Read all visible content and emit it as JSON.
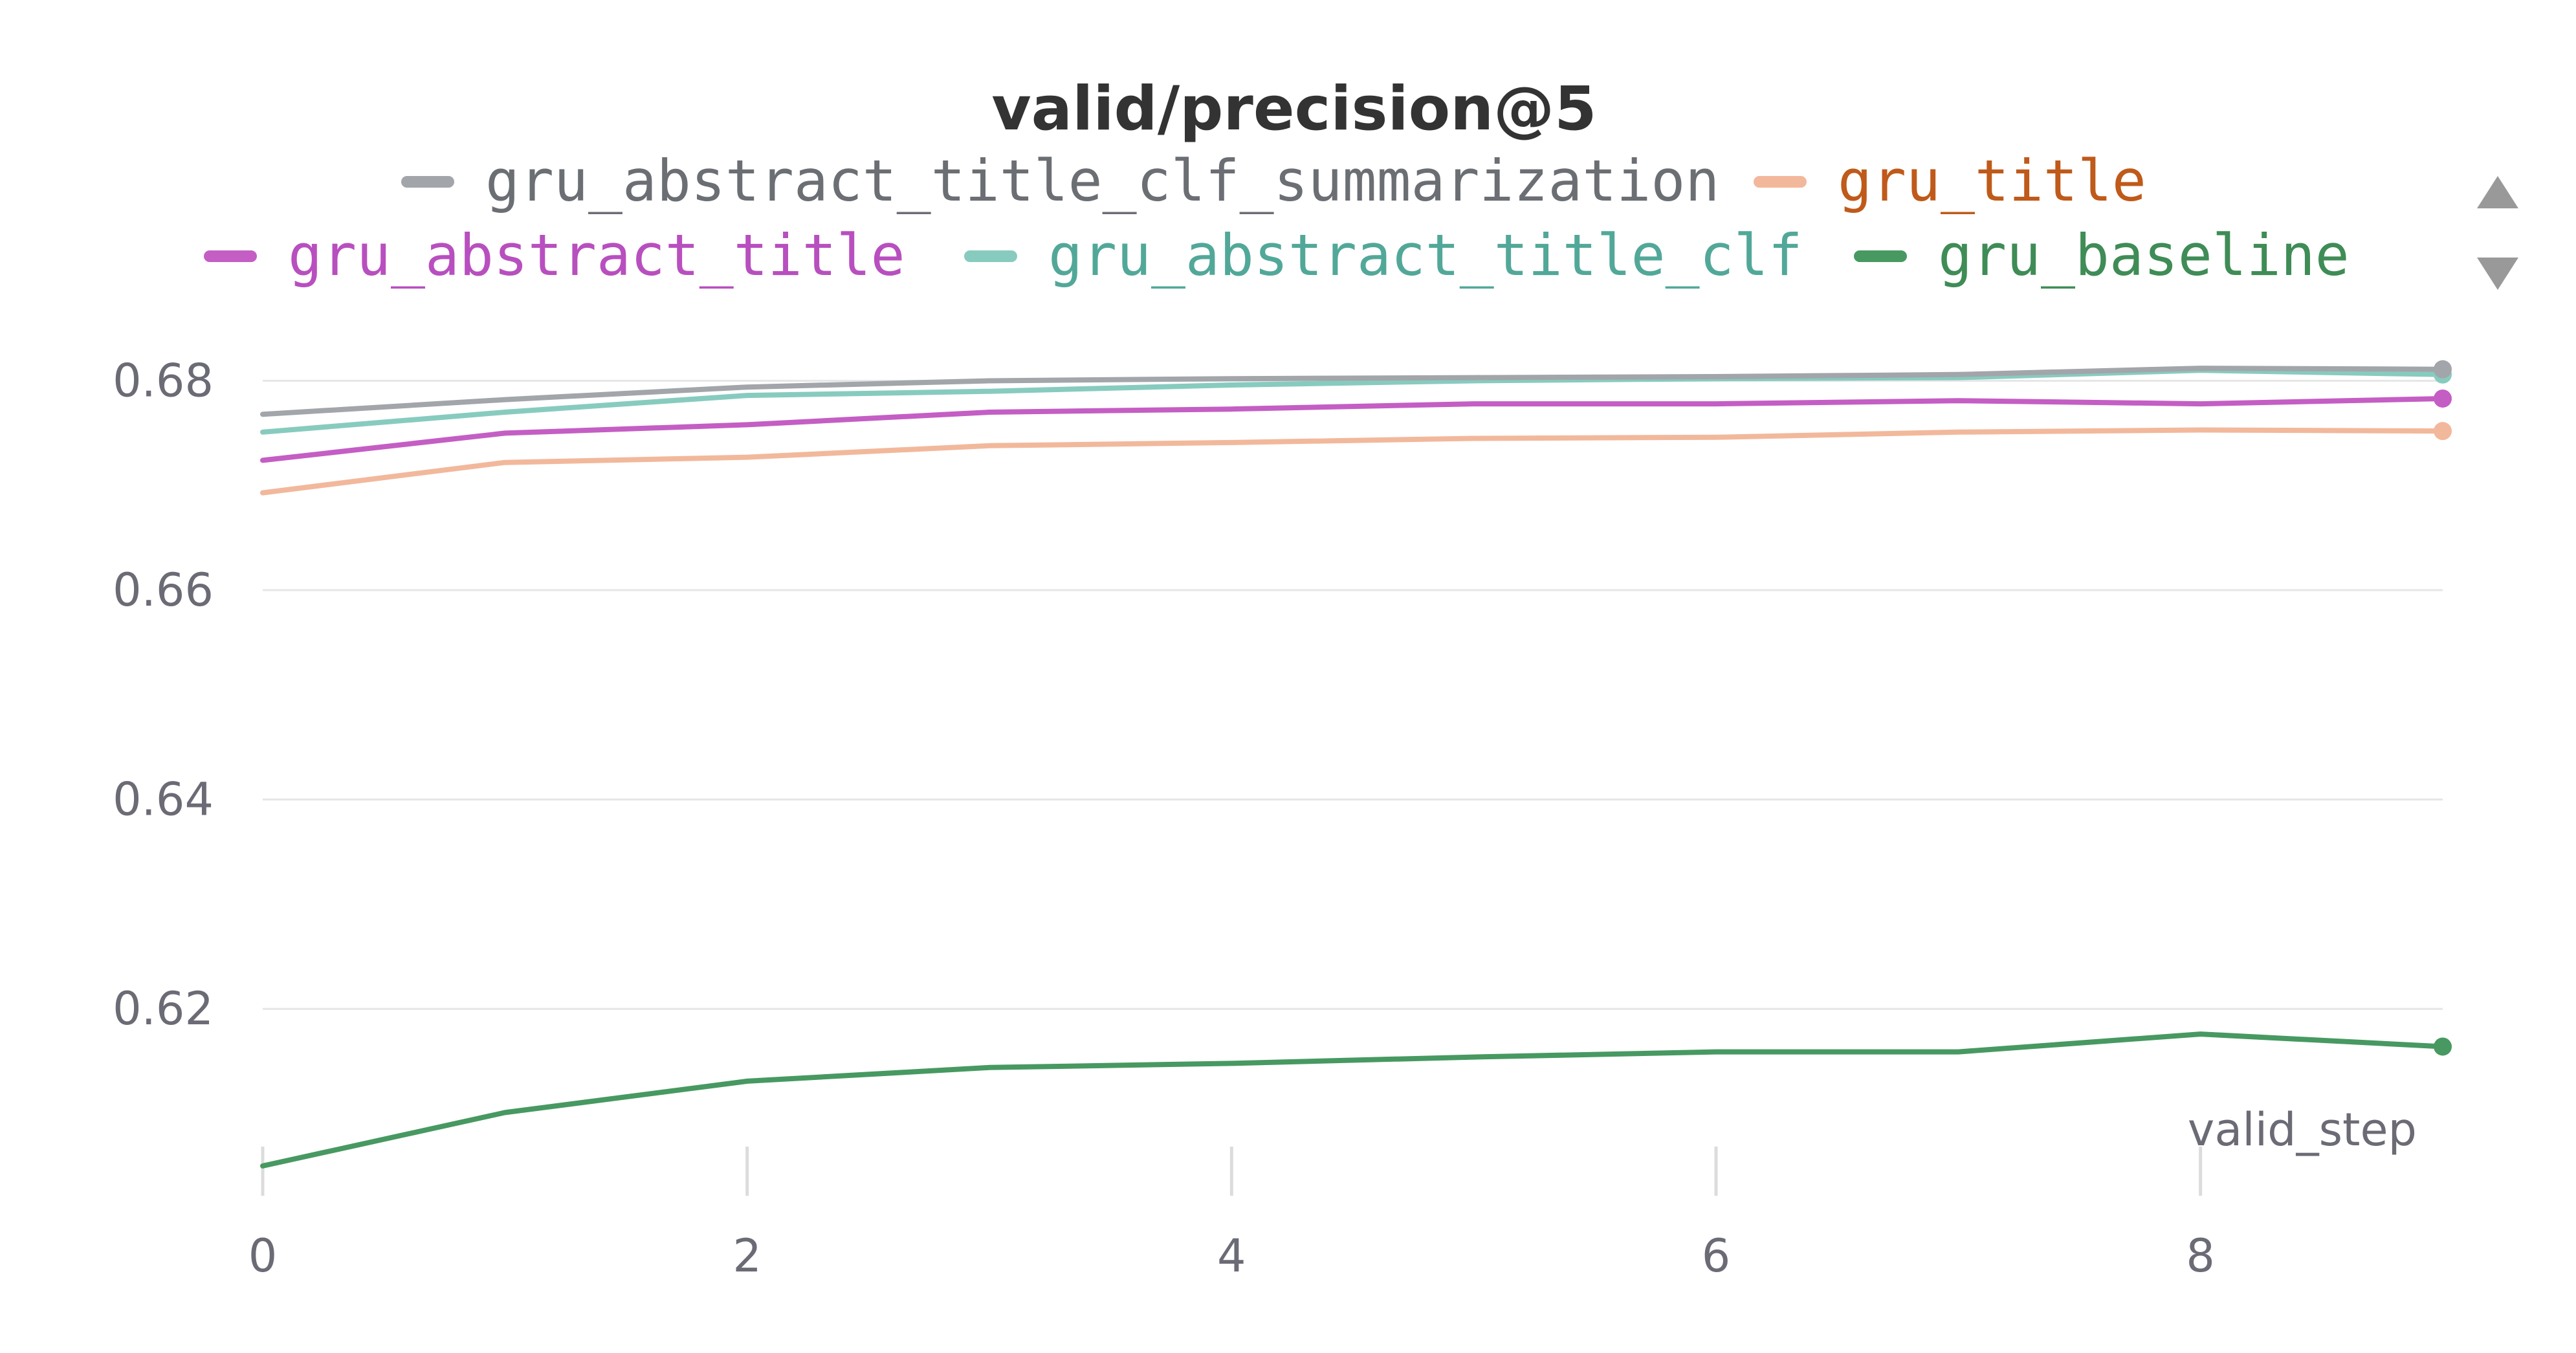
{
  "chart_data": {
    "type": "line",
    "title": "valid/precision@5",
    "xlabel": "valid_step",
    "ylabel": "",
    "xlim": [
      0,
      9
    ],
    "ylim": [
      0.6045,
      0.6838
    ],
    "x_ticks": [
      0,
      2,
      4,
      6,
      8
    ],
    "y_ticks": [
      0.62,
      0.64,
      0.66,
      0.68
    ],
    "grid": "horizontal",
    "legend_position": "top",
    "x": [
      0,
      1,
      2,
      3,
      4,
      5,
      6,
      7,
      8,
      9
    ],
    "series": [
      {
        "name": "gru_abstract_title_clf_summarization",
        "color": "#a2a5a9",
        "text_color": "#6b6e73",
        "values": [
          0.6768,
          0.6782,
          0.6794,
          0.68,
          0.6802,
          0.6803,
          0.6804,
          0.6806,
          0.6812,
          0.6811
        ]
      },
      {
        "name": "gru_title",
        "color": "#f2b89b",
        "text_color": "#bf5a1a",
        "values": [
          0.6693,
          0.6722,
          0.6727,
          0.6738,
          0.6741,
          0.6745,
          0.6746,
          0.6751,
          0.6753,
          0.6752
        ]
      },
      {
        "name": "gru_abstract_title",
        "color": "#c45ec4",
        "text_color": "#b84fbf",
        "values": [
          0.6724,
          0.675,
          0.6758,
          0.677,
          0.6773,
          0.6778,
          0.6778,
          0.6781,
          0.6778,
          0.6783
        ]
      },
      {
        "name": "gru_abstract_title_clf",
        "color": "#87cbbf",
        "text_color": "#52a898",
        "values": [
          0.6751,
          0.677,
          0.6786,
          0.679,
          0.6796,
          0.68,
          0.6802,
          0.6803,
          0.681,
          0.6806
        ]
      },
      {
        "name": "gru_baseline",
        "color": "#479961",
        "text_color": "#3f8c56",
        "values": [
          0.605,
          0.6101,
          0.6131,
          0.6144,
          0.6148,
          0.6154,
          0.6159,
          0.6159,
          0.6176,
          0.6164
        ]
      }
    ]
  },
  "legend_controls": {
    "up_icon": "triangle-up-icon",
    "down_icon": "triangle-down-icon",
    "color": "#999999"
  }
}
